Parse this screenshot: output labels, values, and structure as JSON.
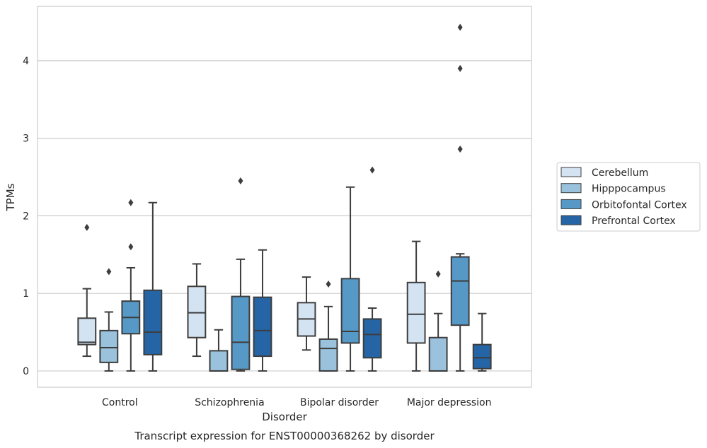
{
  "chart_data": {
    "type": "boxplot",
    "title": "",
    "caption": "Transcript expression for ENST00000368262 by disorder",
    "xlabel": "Disorder",
    "ylabel": "TPMs",
    "ylim": [
      -0.21,
      4.7
    ],
    "yticks": [
      0,
      1,
      2,
      3,
      4
    ],
    "grid": "horizontal",
    "legend_position": "right",
    "categories": [
      "Control",
      "Schizophrenia",
      "Bipolar disorder",
      "Major depression"
    ],
    "series": [
      {
        "name": "Cerebellum",
        "color": "#d3e3f2",
        "boxes": [
          {
            "whisker_low": 0.19,
            "q1": 0.34,
            "median": 0.37,
            "q3": 0.68,
            "whisker_high": 1.06,
            "outliers": [
              1.85
            ]
          },
          {
            "whisker_low": 0.19,
            "q1": 0.43,
            "median": 0.75,
            "q3": 1.09,
            "whisker_high": 1.38,
            "outliers": []
          },
          {
            "whisker_low": 0.27,
            "q1": 0.45,
            "median": 0.67,
            "q3": 0.88,
            "whisker_high": 1.21,
            "outliers": []
          },
          {
            "whisker_low": 0.0,
            "q1": 0.36,
            "median": 0.73,
            "q3": 1.14,
            "whisker_high": 1.67,
            "outliers": []
          }
        ]
      },
      {
        "name": "Hipppocampus",
        "color": "#9ac2dd",
        "boxes": [
          {
            "whisker_low": 0.0,
            "q1": 0.11,
            "median": 0.3,
            "q3": 0.52,
            "whisker_high": 0.76,
            "outliers": [
              1.28
            ]
          },
          {
            "whisker_low": 0.0,
            "q1": 0.0,
            "median": 0.0,
            "q3": 0.26,
            "whisker_high": 0.53,
            "outliers": []
          },
          {
            "whisker_low": 0.0,
            "q1": 0.0,
            "median": 0.29,
            "q3": 0.41,
            "whisker_high": 0.83,
            "outliers": [
              1.12
            ]
          },
          {
            "whisker_low": 0.0,
            "q1": 0.0,
            "median": 0.0,
            "q3": 0.43,
            "whisker_high": 0.74,
            "outliers": [
              1.25
            ]
          }
        ]
      },
      {
        "name": "Orbitofontal Cortex",
        "color": "#5799c6",
        "boxes": [
          {
            "whisker_low": 0.0,
            "q1": 0.48,
            "median": 0.69,
            "q3": 0.9,
            "whisker_high": 1.33,
            "outliers": [
              1.6,
              2.17
            ]
          },
          {
            "whisker_low": 0.0,
            "q1": 0.02,
            "median": 0.37,
            "q3": 0.96,
            "whisker_high": 1.44,
            "outliers": [
              2.45
            ]
          },
          {
            "whisker_low": 0.0,
            "q1": 0.36,
            "median": 0.51,
            "q3": 1.19,
            "whisker_high": 2.37,
            "outliers": []
          },
          {
            "whisker_low": 0.0,
            "q1": 0.59,
            "median": 1.16,
            "q3": 1.47,
            "whisker_high": 1.51,
            "outliers": [
              2.86,
              3.9,
              4.43
            ]
          }
        ]
      },
      {
        "name": "Prefrontal Cortex",
        "color": "#2565a6",
        "boxes": [
          {
            "whisker_low": 0.0,
            "q1": 0.21,
            "median": 0.5,
            "q3": 1.04,
            "whisker_high": 2.17,
            "outliers": []
          },
          {
            "whisker_low": 0.0,
            "q1": 0.19,
            "median": 0.52,
            "q3": 0.95,
            "whisker_high": 1.56,
            "outliers": []
          },
          {
            "whisker_low": 0.0,
            "q1": 0.17,
            "median": 0.47,
            "q3": 0.67,
            "whisker_high": 0.81,
            "outliers": [
              2.59
            ]
          },
          {
            "whisker_low": 0.0,
            "q1": 0.03,
            "median": 0.17,
            "q3": 0.34,
            "whisker_high": 0.74,
            "outliers": []
          }
        ]
      }
    ]
  }
}
